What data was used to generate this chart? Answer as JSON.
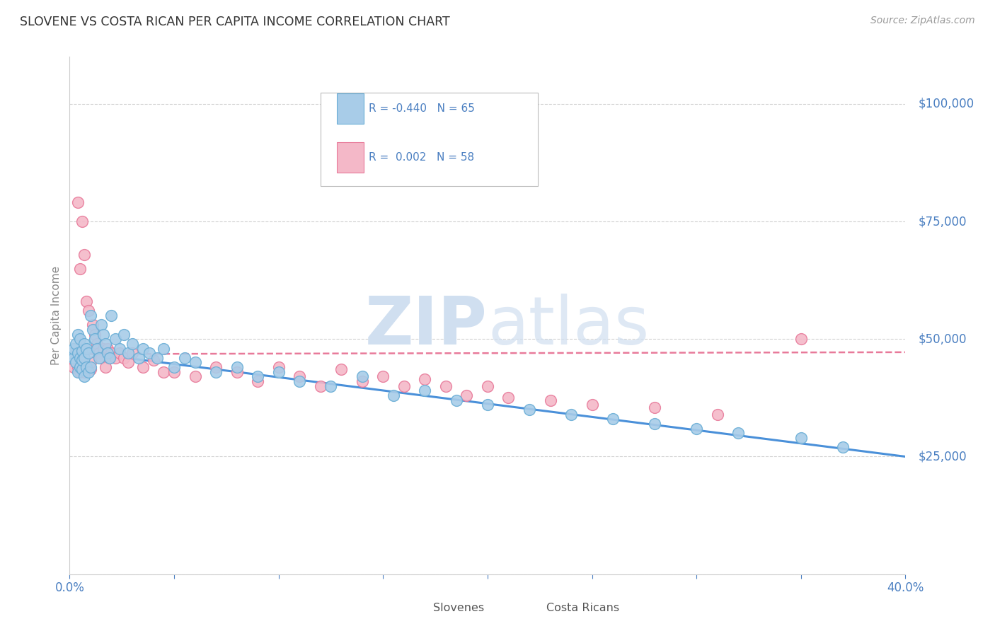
{
  "title": "SLOVENE VS COSTA RICAN PER CAPITA INCOME CORRELATION CHART",
  "source": "Source: ZipAtlas.com",
  "ylabel": "Per Capita Income",
  "xlim": [
    0.0,
    0.4
  ],
  "ylim": [
    0,
    110000
  ],
  "yticks": [
    0,
    25000,
    50000,
    75000,
    100000
  ],
  "ytick_labels": [
    "",
    "$25,000",
    "$50,000",
    "$75,000",
    "$100,000"
  ],
  "xticks": [
    0.0,
    0.05,
    0.1,
    0.15,
    0.2,
    0.25,
    0.3,
    0.35,
    0.4
  ],
  "slovene_color": "#a8cce8",
  "slovene_edge_color": "#6aaed6",
  "costa_rican_color": "#f4b8c8",
  "costa_rican_edge_color": "#e87a9a",
  "slovene_line_color": "#4a90d9",
  "costa_rican_line_color": "#e87a9a",
  "axis_color": "#4a7fc1",
  "grid_color": "#cccccc",
  "background_color": "#ffffff",
  "watermark_color": "#d0dff0",
  "slovene_x": [
    0.001,
    0.002,
    0.002,
    0.003,
    0.003,
    0.004,
    0.004,
    0.004,
    0.005,
    0.005,
    0.005,
    0.006,
    0.006,
    0.006,
    0.007,
    0.007,
    0.007,
    0.008,
    0.008,
    0.009,
    0.009,
    0.01,
    0.01,
    0.011,
    0.012,
    0.013,
    0.014,
    0.015,
    0.016,
    0.017,
    0.018,
    0.019,
    0.02,
    0.022,
    0.024,
    0.026,
    0.028,
    0.03,
    0.033,
    0.035,
    0.038,
    0.042,
    0.045,
    0.05,
    0.055,
    0.06,
    0.07,
    0.08,
    0.09,
    0.1,
    0.11,
    0.125,
    0.14,
    0.155,
    0.17,
    0.185,
    0.2,
    0.22,
    0.24,
    0.26,
    0.28,
    0.3,
    0.32,
    0.35,
    0.37
  ],
  "slovene_y": [
    47000,
    46000,
    48000,
    45000,
    49000,
    43000,
    47000,
    51000,
    44000,
    46000,
    50000,
    43500,
    47500,
    45500,
    42000,
    46000,
    49000,
    44000,
    48000,
    43000,
    47000,
    55000,
    44000,
    52000,
    50000,
    48000,
    46000,
    53000,
    51000,
    49000,
    47000,
    46000,
    55000,
    50000,
    48000,
    51000,
    47000,
    49000,
    46000,
    48000,
    47000,
    46000,
    48000,
    44000,
    46000,
    45000,
    43000,
    44000,
    42000,
    43000,
    41000,
    40000,
    42000,
    38000,
    39000,
    37000,
    36000,
    35000,
    34000,
    33000,
    32000,
    31000,
    30000,
    29000,
    27000
  ],
  "costa_rican_x": [
    0.001,
    0.002,
    0.003,
    0.003,
    0.004,
    0.004,
    0.005,
    0.005,
    0.006,
    0.006,
    0.007,
    0.007,
    0.008,
    0.008,
    0.009,
    0.009,
    0.01,
    0.01,
    0.011,
    0.012,
    0.013,
    0.014,
    0.015,
    0.016,
    0.017,
    0.018,
    0.019,
    0.02,
    0.022,
    0.024,
    0.026,
    0.028,
    0.03,
    0.035,
    0.04,
    0.045,
    0.05,
    0.06,
    0.07,
    0.08,
    0.09,
    0.1,
    0.11,
    0.12,
    0.13,
    0.14,
    0.15,
    0.16,
    0.17,
    0.18,
    0.19,
    0.2,
    0.21,
    0.23,
    0.25,
    0.28,
    0.31,
    0.35
  ],
  "costa_rican_y": [
    46000,
    44000,
    45000,
    47000,
    44000,
    79000,
    43000,
    65000,
    44500,
    75000,
    43000,
    68000,
    44000,
    58000,
    44000,
    56000,
    43500,
    45000,
    53000,
    51000,
    49000,
    47000,
    46000,
    48000,
    44000,
    48000,
    46000,
    47000,
    46000,
    47000,
    46000,
    45000,
    47000,
    44000,
    45500,
    43000,
    43000,
    42000,
    44000,
    43000,
    41000,
    44000,
    42000,
    40000,
    43500,
    41000,
    42000,
    40000,
    41500,
    40000,
    38000,
    40000,
    37500,
    37000,
    36000,
    35500,
    34000,
    50000
  ],
  "slovene_trend_x": [
    0.0,
    0.4
  ],
  "slovene_trend_y": [
    47500,
    25000
  ],
  "costa_rican_trend_x": [
    0.0,
    0.4
  ],
  "costa_rican_trend_y": [
    46800,
    47200
  ]
}
